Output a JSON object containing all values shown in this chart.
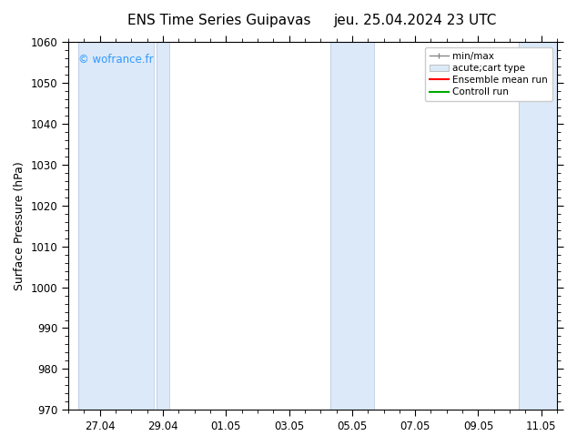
{
  "title_left": "ENS Time Series Guipavas",
  "title_right": "jeu. 25.04.2024 23 UTC",
  "ylabel": "Surface Pressure (hPa)",
  "ylim": [
    970,
    1060
  ],
  "yticks": [
    970,
    980,
    990,
    1000,
    1010,
    1020,
    1030,
    1040,
    1050,
    1060
  ],
  "xtick_labels": [
    "27.04",
    "29.04",
    "01.05",
    "03.05",
    "05.05",
    "07.05",
    "09.05",
    "11.05"
  ],
  "xmin": 26.0,
  "xmax": 42.0,
  "watermark": "© wofrance.fr",
  "watermark_color": "#3399ff",
  "bg_color": "#ffffff",
  "plot_bg_color": "#ffffff",
  "shaded_bands": [
    {
      "x_start": 26.5,
      "x_end": 28.5,
      "color": "#dce9f8"
    },
    {
      "x_start": 29.5,
      "x_end": 30.5,
      "color": "#dce9f8"
    },
    {
      "x_start": 34.5,
      "x_end": 36.0,
      "color": "#dce9f8"
    },
    {
      "x_start": 40.5,
      "x_end": 42.0,
      "color": "#dce9f8"
    }
  ],
  "legend_labels": [
    "min/max",
    "acute;cart type",
    "Ensemble mean run",
    "Controll run"
  ],
  "legend_color_minmax": "#888888",
  "legend_color_band": "#dce9f8",
  "legend_color_ens": "#ff0000",
  "legend_color_ctrl": "#00aa00",
  "title_fontsize": 11,
  "tick_fontsize": 8.5,
  "ylabel_fontsize": 9
}
